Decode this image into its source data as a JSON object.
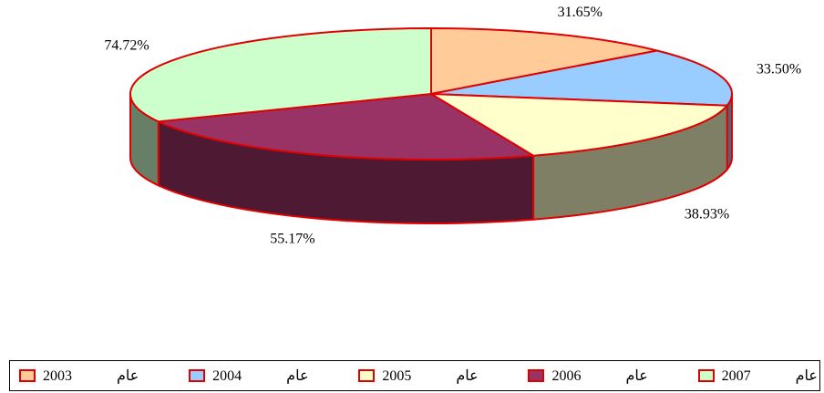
{
  "chart_data": {
    "type": "pie3d",
    "categories": [
      "عام 2003",
      "عام 2004",
      "عام 2005",
      "عام 2006",
      "عام 2007"
    ],
    "values": [
      31.65,
      33.5,
      38.93,
      55.17,
      74.72
    ],
    "value_labels": [
      "31.65%",
      "33.50%",
      "38.93%",
      "55.17%",
      "74.72%"
    ],
    "colors": [
      "#ffcc99",
      "#99ccff",
      "#ffffcc",
      "#993366",
      "#ccffcc"
    ],
    "side_colors": [
      "#806650",
      "#4c667f",
      "#7f7f66",
      "#4d1933",
      "#667f66"
    ],
    "edge_color": "#e00000"
  }
}
